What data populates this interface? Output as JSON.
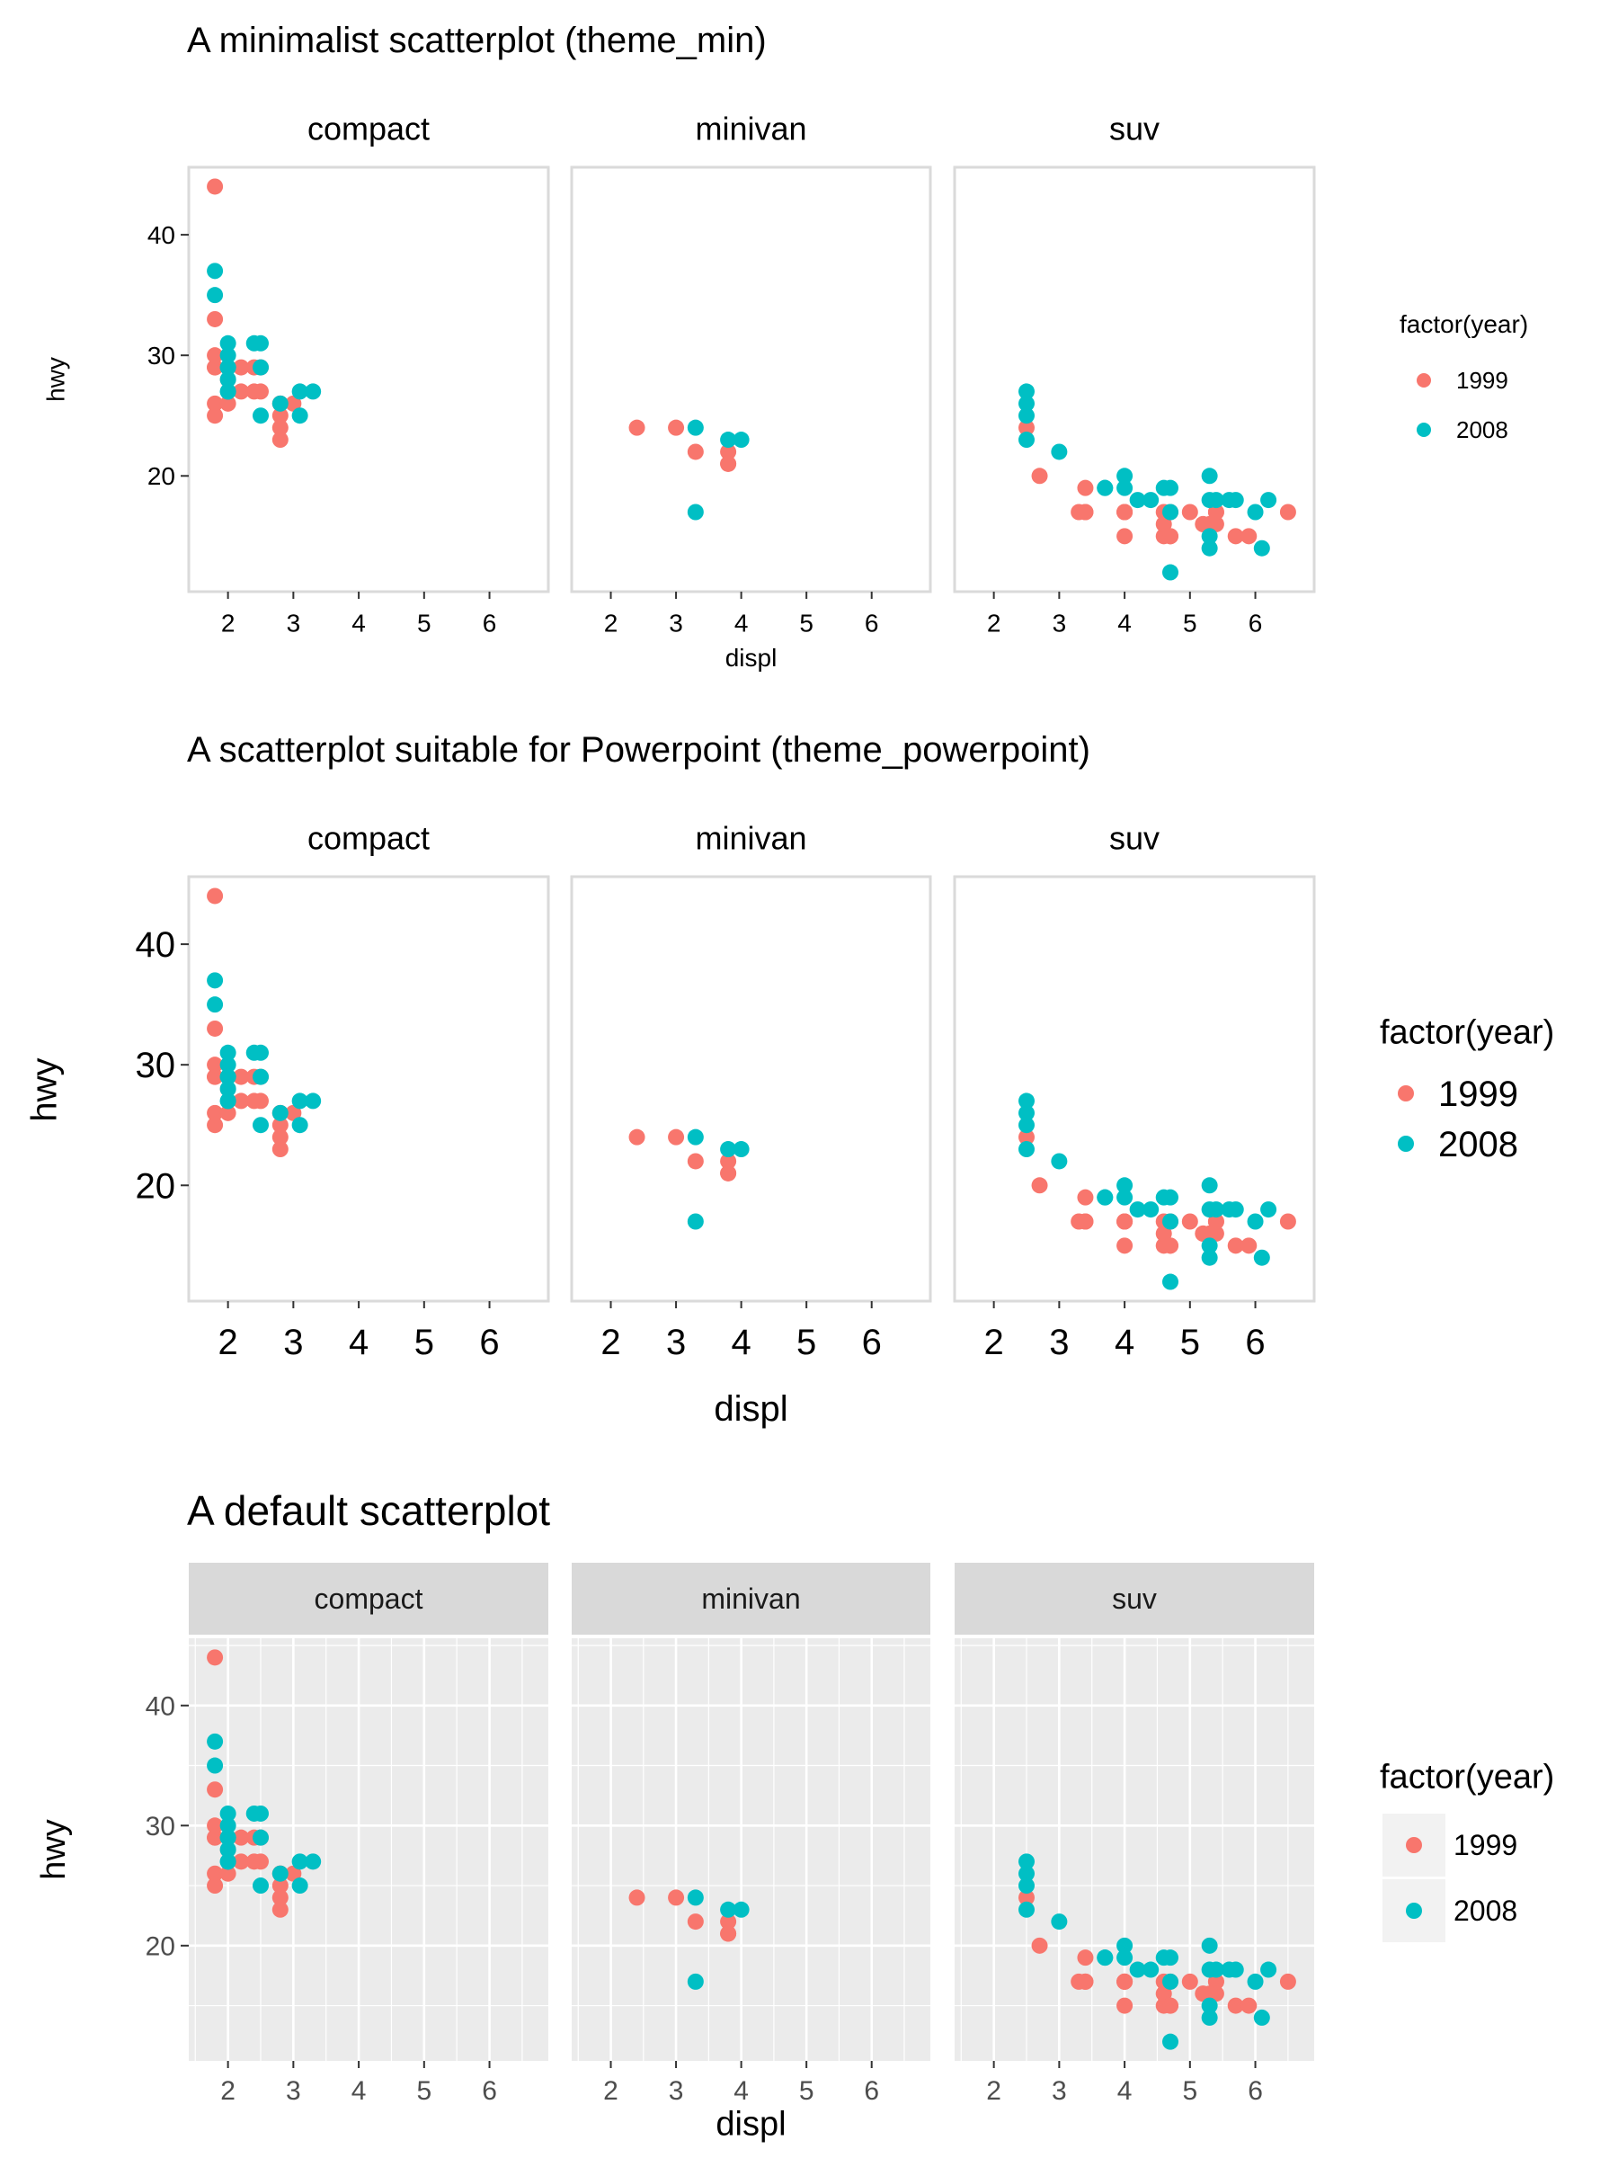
{
  "colors": {
    "y1999": "#F8766D",
    "y2008": "#00BFC4"
  },
  "chart_data": [
    {
      "type": "scatter",
      "theme": "theme_min",
      "title": "A minimalist scatterplot (theme_min)",
      "xlabel": "displ",
      "ylabel": "hwy",
      "legend_title": "factor(year)",
      "legend_placement": "right",
      "legend_keys_shaded": false,
      "grid": false,
      "facet_strips_shaded": false,
      "facets": [
        "compact",
        "minivan",
        "suv"
      ],
      "xlim": [
        1.4,
        6.9
      ],
      "ylim": [
        10.4,
        45.6
      ],
      "xticks": [
        2,
        3,
        4,
        5,
        6
      ],
      "yticks": [
        20,
        30,
        40
      ]
    },
    {
      "type": "scatter",
      "theme": "theme_powerpoint",
      "title": "A scatterplot suitable for Powerpoint (theme_powerpoint)",
      "xlabel": "displ",
      "ylabel": "hwy",
      "legend_title": "factor(year)",
      "legend_placement": "right",
      "legend_keys_shaded": false,
      "grid": false,
      "facet_strips_shaded": false,
      "facets": [
        "compact",
        "minivan",
        "suv"
      ],
      "xlim": [
        1.4,
        6.9
      ],
      "ylim": [
        10.4,
        45.6
      ],
      "xticks": [
        2,
        3,
        4,
        5,
        6
      ],
      "yticks": [
        20,
        30,
        40
      ]
    },
    {
      "type": "scatter",
      "theme": "default",
      "title": "A default scatterplot",
      "xlabel": "displ",
      "ylabel": "hwy",
      "legend_title": "factor(year)",
      "legend_placement": "right",
      "legend_keys_shaded": true,
      "grid": true,
      "facet_strips_shaded": true,
      "facets": [
        "compact",
        "minivan",
        "suv"
      ],
      "xlim": [
        1.4,
        6.9
      ],
      "ylim": [
        10.4,
        45.6
      ],
      "xticks": [
        2,
        3,
        4,
        5,
        6
      ],
      "yticks": [
        20,
        30,
        40
      ]
    }
  ],
  "series": [
    {
      "name": "1999",
      "points": {
        "compact": [
          [
            1.8,
            29
          ],
          [
            1.8,
            29
          ],
          [
            2.8,
            26
          ],
          [
            1.8,
            26
          ],
          [
            1.8,
            25
          ],
          [
            2.8,
            23
          ],
          [
            2.0,
            28
          ],
          [
            2.0,
            26
          ],
          [
            2.0,
            29
          ],
          [
            1.8,
            33
          ],
          [
            1.8,
            44
          ],
          [
            1.8,
            30
          ],
          [
            2.2,
            27
          ],
          [
            2.2,
            29
          ],
          [
            2.4,
            27
          ],
          [
            2.5,
            29
          ],
          [
            2.8,
            25
          ],
          [
            2.8,
            24
          ],
          [
            3.0,
            26
          ],
          [
            2.8,
            26
          ],
          [
            2.5,
            27
          ],
          [
            2.4,
            29
          ]
        ],
        "minivan": [
          [
            2.4,
            24
          ],
          [
            3.0,
            24
          ],
          [
            3.3,
            22
          ],
          [
            3.8,
            22
          ],
          [
            3.8,
            21
          ],
          [
            3.8,
            21
          ]
        ],
        "suv": [
          [
            4.0,
            17
          ],
          [
            4.7,
            17
          ],
          [
            3.3,
            17
          ],
          [
            4.0,
            17
          ],
          [
            4.6,
            17
          ],
          [
            3.4,
            17
          ],
          [
            4.7,
            15
          ],
          [
            5.2,
            16
          ],
          [
            4.6,
            15
          ],
          [
            5.4,
            16
          ],
          [
            5.4,
            17
          ],
          [
            5.7,
            15
          ],
          [
            5.9,
            15
          ],
          [
            6.5,
            17
          ],
          [
            4.0,
            15
          ],
          [
            3.4,
            19
          ],
          [
            4.6,
            16
          ],
          [
            5.0,
            17
          ],
          [
            5.4,
            17
          ],
          [
            2.5,
            24
          ],
          [
            2.7,
            20
          ],
          [
            4.7,
            15
          ],
          [
            5.3,
            16
          ],
          [
            3.4,
            17
          ],
          [
            5.2,
            16
          ],
          [
            4.0,
            17
          ]
        ]
      }
    },
    {
      "name": "2008",
      "points": {
        "compact": [
          [
            2.0,
            31
          ],
          [
            2.0,
            27
          ],
          [
            2.0,
            30
          ],
          [
            1.8,
            37
          ],
          [
            1.8,
            35
          ],
          [
            2.0,
            29
          ],
          [
            2.0,
            28
          ],
          [
            2.8,
            26
          ],
          [
            3.1,
            25
          ],
          [
            3.1,
            27
          ],
          [
            2.5,
            31
          ],
          [
            2.5,
            29
          ],
          [
            2.5,
            25
          ],
          [
            2.4,
            31
          ],
          [
            3.3,
            27
          ],
          [
            2.0,
            29
          ],
          [
            2.0,
            27
          ]
        ],
        "minivan": [
          [
            3.3,
            24
          ],
          [
            3.8,
            23
          ],
          [
            4.0,
            23
          ],
          [
            3.3,
            17
          ]
        ],
        "suv": [
          [
            4.0,
            20
          ],
          [
            4.7,
            19
          ],
          [
            5.3,
            20
          ],
          [
            5.3,
            18
          ],
          [
            6.0,
            17
          ],
          [
            6.1,
            14
          ],
          [
            5.3,
            15
          ],
          [
            5.3,
            14
          ],
          [
            6.2,
            18
          ],
          [
            5.6,
            18
          ],
          [
            4.2,
            18
          ],
          [
            4.4,
            18
          ],
          [
            3.7,
            19
          ],
          [
            4.7,
            12
          ],
          [
            5.7,
            18
          ],
          [
            2.5,
            23
          ],
          [
            2.5,
            27
          ],
          [
            2.5,
            26
          ],
          [
            2.5,
            25
          ],
          [
            3.0,
            22
          ],
          [
            3.7,
            19
          ],
          [
            4.6,
            19
          ],
          [
            4.7,
            17
          ],
          [
            5.4,
            18
          ],
          [
            4.0,
            19
          ]
        ]
      }
    }
  ]
}
